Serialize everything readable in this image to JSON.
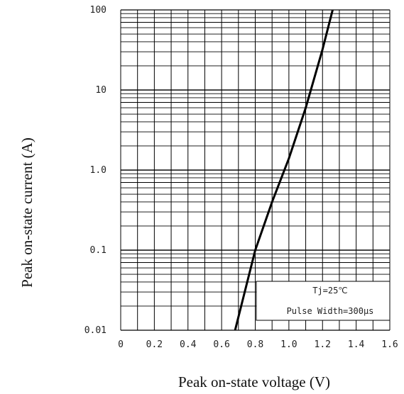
{
  "chart_data": {
    "type": "line",
    "xlabel": "Peak on-state voltage (V)",
    "ylabel": "Peak on-state current (A)",
    "xlim": [
      0,
      1.6
    ],
    "ylim": [
      0.01,
      100
    ],
    "yscale": "log",
    "x_ticks": [
      "0",
      "0.2",
      "0.4",
      "0.6",
      "0.8",
      "1.0",
      "1.2",
      "1.4",
      "1.6"
    ],
    "y_ticks": [
      "0.01",
      "0.1",
      "1.0",
      "10",
      "100"
    ],
    "grid": true,
    "series": [
      {
        "x": [
          0.68,
          0.8,
          0.9,
          1.0,
          1.1,
          1.2,
          1.26
        ],
        "y": [
          0.01,
          0.1,
          0.4,
          1.4,
          6,
          32,
          100
        ]
      }
    ],
    "annotations": [
      "Tj=25℃",
      "Pulse Width=300μs"
    ],
    "line_color": "#000000"
  }
}
